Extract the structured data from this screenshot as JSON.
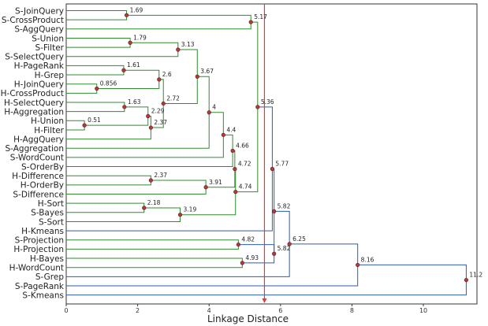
{
  "chart_data": {
    "type": "dendrogram",
    "orientation": "horizontal",
    "xlabel": "Linkage Distance",
    "xlim": [
      0,
      11.5
    ],
    "xticks": [
      0,
      2,
      4,
      6,
      8,
      10
    ],
    "cutoff_line": {
      "x": 5.55,
      "color": "#e8373a"
    },
    "colors": {
      "below_cut": "#2e8b2e",
      "above_cut": "#2a5db0",
      "node": "#b23a3a"
    },
    "leaves": [
      "S-JoinQuery",
      "S-CrossProduct",
      "S-AggQuery",
      "S-Union",
      "S-Filter",
      "S-SelectQuery",
      "H-PageRank",
      "H-Grep",
      "H-JoinQuery",
      "H-CrossProduct",
      "H-SelectQuery",
      "H-Aggregation",
      "H-Union",
      "H-Filter",
      "H-AggQuery",
      "S-Aggregation",
      "S-WordCount",
      "S-OrderBy",
      "H-Difference",
      "H-OrderBy",
      "S-Difference",
      "H-Sort",
      "S-Bayes",
      "S-Sort",
      "H-Kmeans",
      "S-Projection",
      "H-Projection",
      "H-Bayes",
      "H-WordCount",
      "S-Grep",
      "S-PageRank",
      "S-Kmeans"
    ],
    "merges": [
      {
        "a": "L0",
        "b": "L1",
        "h": 1.69,
        "label": "1.69"
      },
      {
        "a": "M0",
        "b": "L2",
        "h": 5.17,
        "label": "5.17"
      },
      {
        "a": "L3",
        "b": "L4",
        "h": 1.79,
        "label": "1.79"
      },
      {
        "a": "M2",
        "b": "L5",
        "h": 3.13,
        "label": "3.13"
      },
      {
        "a": "L6",
        "b": "L7",
        "h": 1.61,
        "label": "1.61"
      },
      {
        "a": "L8",
        "b": "L9",
        "h": 0.856,
        "label": "0.856"
      },
      {
        "a": "M4",
        "b": "M5",
        "h": 2.6,
        "label": "2.6"
      },
      {
        "a": "L10",
        "b": "L11",
        "h": 1.63,
        "label": "1.63"
      },
      {
        "a": "L12",
        "b": "L13",
        "h": 0.51,
        "label": "0.51"
      },
      {
        "a": "M7",
        "b": "M8",
        "h": 2.29,
        "label": "2.29"
      },
      {
        "a": "M9",
        "b": "L14",
        "h": 2.37,
        "label": "2.37"
      },
      {
        "a": "M6",
        "b": "M10",
        "h": 2.72,
        "label": "2.72"
      },
      {
        "a": "M3",
        "b": "M11",
        "h": 3.67,
        "label": "3.67"
      },
      {
        "a": "M12",
        "b": "L15",
        "h": 4.0,
        "label": "4"
      },
      {
        "a": "M13",
        "b": "L16",
        "h": 4.4,
        "label": "4.4"
      },
      {
        "a": "M14",
        "b": "L17",
        "h": 4.66,
        "label": "4.66"
      },
      {
        "a": "L18",
        "b": "L19",
        "h": 2.37,
        "label": "2.37"
      },
      {
        "a": "M16",
        "b": "L20",
        "h": 3.91,
        "label": "3.91"
      },
      {
        "a": "M15",
        "b": "M17",
        "h": 4.72,
        "label": "4.72"
      },
      {
        "a": "L21",
        "b": "L22",
        "h": 2.18,
        "label": "2.18"
      },
      {
        "a": "M19",
        "b": "L23",
        "h": 3.19,
        "label": "3.19"
      },
      {
        "a": "M18",
        "b": "M20",
        "h": 4.74,
        "label": "4.74"
      },
      {
        "a": "M1",
        "b": "M21",
        "h": 5.36,
        "label": "5.36"
      },
      {
        "a": "M22",
        "b": "L24",
        "h": 5.77,
        "label": "5.77"
      },
      {
        "a": "L25",
        "b": "L26",
        "h": 4.82,
        "label": "4.82"
      },
      {
        "a": "L27",
        "b": "L28",
        "h": 4.93,
        "label": "4.93"
      },
      {
        "a": "M24",
        "b": "M25",
        "h": 5.82,
        "label": "5.82"
      },
      {
        "a": "M23",
        "b": "M26",
        "h": 5.82,
        "label": "5.82"
      },
      {
        "a": "M27",
        "b": "L29",
        "h": 6.25,
        "label": "6.25"
      },
      {
        "a": "M28",
        "b": "L30",
        "h": 8.16,
        "label": "8.16"
      },
      {
        "a": "M29",
        "b": "L31",
        "h": 11.2,
        "label": "11.2"
      }
    ]
  }
}
